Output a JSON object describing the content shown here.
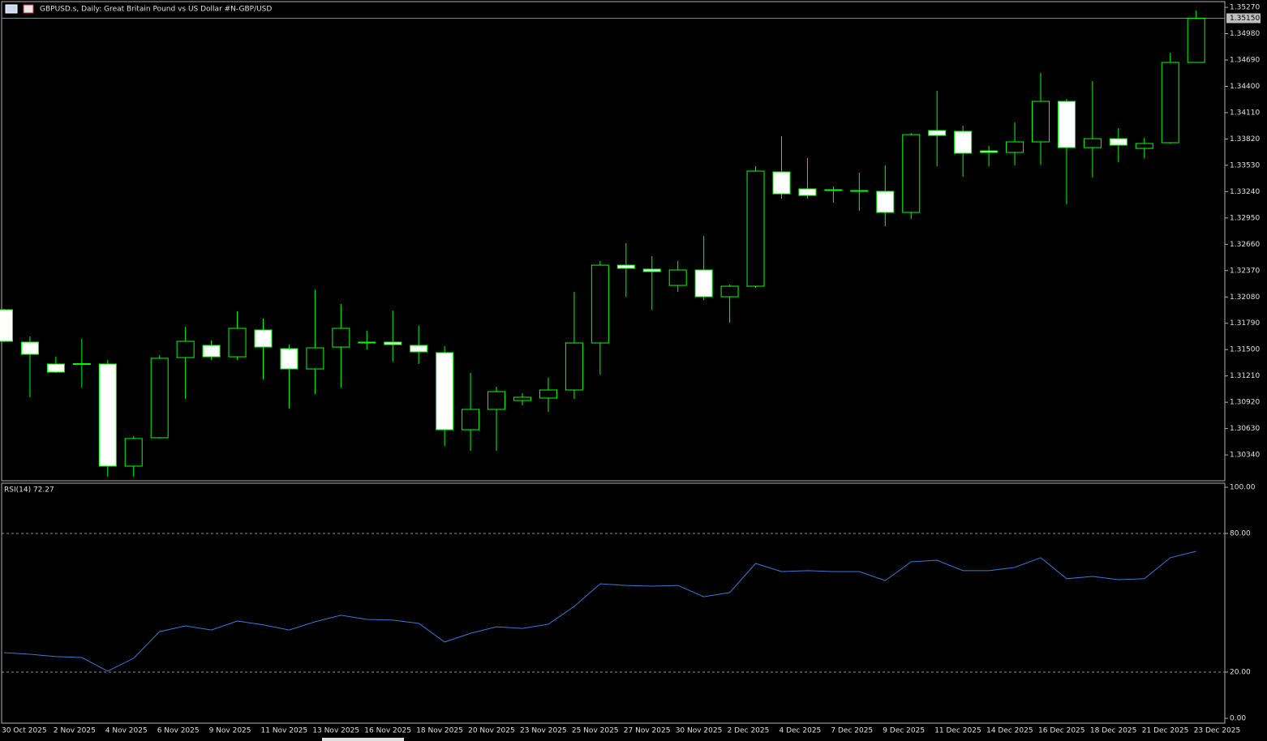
{
  "chart_data": [
    {
      "type": "candlestick",
      "title": "GBPUSD.s, Daily:  Great Britain Pound vs US Dollar #N-GBP/USD",
      "categories": [
        "30 Oct 2025",
        null,
        "2 Nov 2025",
        null,
        "4 Nov 2025",
        null,
        "6 Nov 2025",
        null,
        "9 Nov 2025",
        null,
        "11 Nov 2025",
        null,
        "13 Nov 2025",
        null,
        "16 Nov 2025",
        null,
        "18 Nov 2025",
        null,
        "20 Nov 2025",
        null,
        "23 Nov 2025",
        null,
        "25 Nov 2025",
        null,
        "27 Nov 2025",
        null,
        "30 Nov 2025",
        null,
        "2 Dec 2025",
        null,
        "4 Dec 2025",
        null,
        "7 Dec 2025",
        null,
        "9 Dec 2025",
        null,
        "11 Dec 2025",
        null,
        "14 Dec 2025",
        null,
        "16 Dec 2025",
        null,
        "18 Dec 2025",
        null,
        "21 Dec 2025",
        null,
        "23 Dec 2025"
      ],
      "open": [
        1.31939,
        1.31582,
        1.31341,
        1.31345,
        1.31341,
        1.30216,
        1.30529,
        1.31412,
        1.31546,
        1.31421,
        1.31716,
        1.3151,
        1.31287,
        1.31528,
        1.3158,
        1.31582,
        1.31546,
        1.31466,
        1.30617,
        1.30841,
        1.30939,
        1.30966,
        1.31055,
        1.31573,
        1.3243,
        1.32386,
        1.32207,
        1.32377,
        1.32082,
        1.32198,
        1.33457,
        1.3327,
        1.33261,
        1.33252,
        1.33243,
        1.33011,
        1.33913,
        1.33904,
        1.33689,
        1.33672,
        1.33788,
        1.34234,
        1.33725,
        1.33823,
        1.33716,
        1.33779,
        1.34663
      ],
      "high": [
        1.3195,
        1.31644,
        1.31421,
        1.31618,
        1.31386,
        1.30546,
        1.31439,
        1.31752,
        1.316,
        1.31921,
        1.31841,
        1.31555,
        1.32162,
        1.32002,
        1.31707,
        1.3193,
        1.31761,
        1.31537,
        1.31243,
        1.31091,
        1.3102,
        1.31189,
        1.32136,
        1.32475,
        1.32671,
        1.32528,
        1.32475,
        1.32752,
        1.32216,
        1.3352,
        1.3385,
        1.33609,
        1.33296,
        1.33448,
        1.33529,
        1.33886,
        1.3435,
        1.33966,
        1.33743,
        1.34002,
        1.34547,
        1.34261,
        1.34457,
        1.33939,
        1.33832,
        1.3477,
        1.35234
      ],
      "low": [
        1.3158,
        1.30975,
        1.31243,
        1.31082,
        1.301,
        1.301,
        1.3052,
        1.30957,
        1.31386,
        1.31386,
        1.31171,
        1.3085,
        1.3101,
        1.31082,
        1.31502,
        1.31368,
        1.31341,
        1.30439,
        1.30385,
        1.30385,
        1.30885,
        1.30814,
        1.30957,
        1.31225,
        1.32082,
        1.31939,
        1.32136,
        1.32046,
        1.31796,
        1.3218,
        1.33163,
        1.33163,
        1.33118,
        1.33029,
        1.32859,
        1.32939,
        1.3352,
        1.33404,
        1.3352,
        1.33529,
        1.33535,
        1.331,
        1.33395,
        1.33564,
        1.33609,
        1.3377,
        1.34663
      ],
      "close": [
        1.31591,
        1.31448,
        1.31252,
        1.3134,
        1.30216,
        1.3052,
        1.31404,
        1.31591,
        1.31421,
        1.31734,
        1.31528,
        1.31287,
        1.31519,
        1.31734,
        1.31582,
        1.31555,
        1.31475,
        1.30617,
        1.30841,
        1.31037,
        1.30975,
        1.31055,
        1.31573,
        1.3243,
        1.32395,
        1.32359,
        1.32377,
        1.32082,
        1.32198,
        1.33466,
        1.33216,
        1.33198,
        1.33257,
        1.3325,
        1.33011,
        1.33868,
        1.33859,
        1.33663,
        1.33672,
        1.33788,
        1.34234,
        1.33725,
        1.33823,
        1.33752,
        1.3377,
        1.34663,
        1.3515
      ],
      "up_color": "#000000",
      "down_color": "#ffffff",
      "wick_color": "#00ff00",
      "ylim": [
        1.30055,
        1.35333
      ],
      "yticks": [
        {
          "value": 1.3527,
          "label": "1.35270"
        },
        {
          "value": 1.3498,
          "label": "1.34980"
        },
        {
          "value": 1.3469,
          "label": "1.34690"
        },
        {
          "value": 1.344,
          "label": "1.34400"
        },
        {
          "value": 1.3411,
          "label": "1.34110"
        },
        {
          "value": 1.3382,
          "label": "1.33820"
        },
        {
          "value": 1.3353,
          "label": "1.33530"
        },
        {
          "value": 1.3324,
          "label": "1.33240"
        },
        {
          "value": 1.3295,
          "label": "1.32950"
        },
        {
          "value": 1.3266,
          "label": "1.32660"
        },
        {
          "value": 1.3237,
          "label": "1.32370"
        },
        {
          "value": 1.3208,
          "label": "1.32080"
        },
        {
          "value": 1.3179,
          "label": "1.31790"
        },
        {
          "value": 1.315,
          "label": "1.31500"
        },
        {
          "value": 1.3121,
          "label": "1.31210"
        },
        {
          "value": 1.3092,
          "label": "1.30920"
        },
        {
          "value": 1.3063,
          "label": "1.30630"
        },
        {
          "value": 1.3034,
          "label": "1.30340"
        }
      ],
      "current_price": {
        "value": 1.3515,
        "label": "1.35150"
      }
    },
    {
      "type": "line",
      "title": "RSI(14) 72.27",
      "values": [
        28.4,
        27.7,
        26.7,
        26.3,
        20.4,
        26.0,
        37.5,
        40.0,
        38.2,
        42.1,
        40.4,
        38.2,
        41.8,
        44.6,
        42.8,
        42.5,
        41.1,
        33.0,
        36.8,
        39.6,
        38.9,
        40.7,
        48.4,
        58.2,
        57.5,
        57.2,
        57.5,
        52.6,
        54.4,
        67.0,
        63.5,
        63.9,
        63.5,
        63.5,
        59.6,
        67.7,
        68.4,
        63.9,
        63.9,
        65.3,
        69.5,
        60.4,
        61.4,
        60.0,
        60.4,
        69.5,
        72.27
      ],
      "color": "#3c78d8",
      "ylim": [
        -2.46,
        101.75
      ],
      "yticks": [
        {
          "value": 100,
          "label": "100.00"
        },
        {
          "value": 80,
          "label": "80.00"
        },
        {
          "value": 20,
          "label": "20.00"
        },
        {
          "value": 0,
          "label": "0.00"
        }
      ],
      "levels": [
        80,
        20
      ]
    }
  ]
}
